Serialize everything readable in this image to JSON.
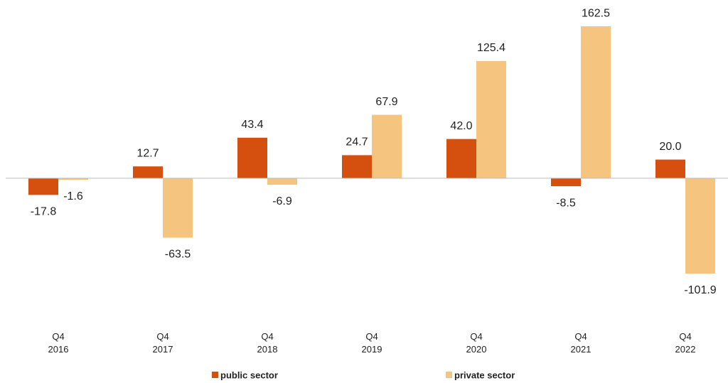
{
  "chart_data": {
    "type": "bar",
    "categories": [
      "Q4 2016",
      "Q4 2017",
      "Q4 2018",
      "Q4 2019",
      "Q4 2020",
      "Q4 2021",
      "Q4 2022"
    ],
    "series": [
      {
        "name": "public sector",
        "color": "#d5500f",
        "values": [
          -17.8,
          12.7,
          43.4,
          24.7,
          42.0,
          -8.5,
          20.0
        ],
        "value_labels": [
          "-17.8",
          "12.7",
          "43.4",
          "24.7",
          "42.0",
          "-8.5",
          "20.0"
        ]
      },
      {
        "name": "private sector",
        "color": "#f5c47f",
        "values": [
          -1.6,
          -63.5,
          -6.9,
          67.9,
          125.4,
          162.5,
          -101.9
        ],
        "value_labels": [
          "-1.6",
          "-63.5",
          "-6.9",
          "67.9",
          "125.4",
          "162.5",
          "-101.9"
        ]
      }
    ],
    "ylim": [
      -130,
      180
    ]
  }
}
